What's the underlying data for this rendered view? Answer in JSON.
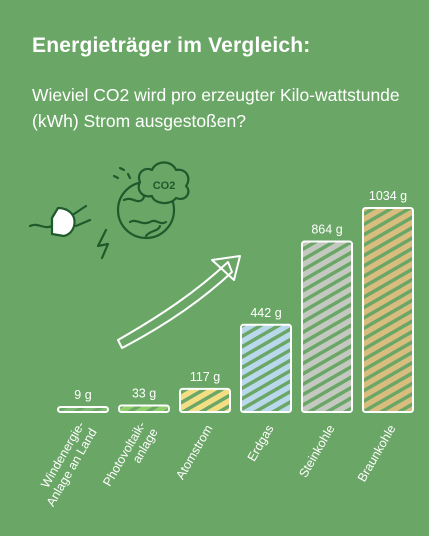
{
  "header": {
    "title": "Energieträger im Vergleich:",
    "subtitle": "Wieviel CO2 wird pro erzeugter Kilo-wattstunde (kWh) Strom ausgestoßen?"
  },
  "colors": {
    "background": "#6aa666",
    "text": "#ffffff",
    "outline": "#ffffff",
    "hatch_wind": "#7dbb74",
    "hatch_pv": "#8fd06b",
    "hatch_atom": "#f3de84",
    "hatch_gas": "#b9d8ec",
    "hatch_stein": "#c3c8c0",
    "hatch_braun": "#d8bd7e",
    "icon_stroke": "#1f5a2c"
  },
  "icons": [
    "plug-icon",
    "globe-co2-icon",
    "lightning-icon",
    "growth-arrow-icon"
  ],
  "globe_label": "CO2",
  "chart_data": {
    "type": "bar",
    "unit": "g",
    "categories": [
      "Windenergie-Anlage an Land",
      "Photovoltaik-anlage",
      "Atomstrom",
      "Erdgas",
      "Steinkohle",
      "Braunkohle"
    ],
    "category_lines": [
      [
        "Windenergie-",
        "Anlage an Land"
      ],
      [
        "Photovoltaik-",
        "anlage"
      ],
      [
        "Atomstrom"
      ],
      [
        "Erdgas"
      ],
      [
        "Steinkohle"
      ],
      [
        "Braunkohle"
      ]
    ],
    "values": [
      9,
      33,
      117,
      442,
      864,
      1034
    ],
    "value_labels": [
      "9 g",
      "33 g",
      "117 g",
      "442 g",
      "864 g",
      "1034 g"
    ],
    "xlabel": "",
    "ylabel": "",
    "ylim": [
      0,
      1034
    ],
    "grid": false,
    "legend": "none"
  }
}
